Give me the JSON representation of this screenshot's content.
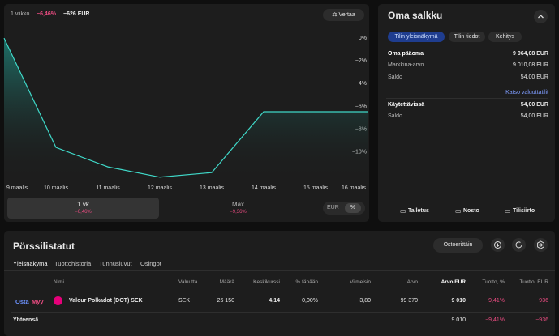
{
  "header": {
    "period": "1 viikko",
    "change_pct": "−6,46%",
    "change_eur": "−626 EUR",
    "compare": "Vertaa"
  },
  "chart": {
    "type": "line",
    "categories": [
      "9 maalis",
      "10 maalis",
      "11 maalis",
      "12 maalis",
      "13 maalis",
      "14 maalis",
      "15 maalis",
      "16 maalis"
    ],
    "values": [
      0,
      -9.6,
      -11.3,
      -12.2,
      -11.8,
      -6.46,
      -6.46,
      -6.46
    ],
    "color": "#3fd8c8",
    "ylim": [
      -12.5,
      1.5
    ],
    "yticks": [
      {
        "value": 0,
        "label": "0%"
      },
      {
        "value": -2,
        "label": "−2%"
      },
      {
        "value": -4,
        "label": "−4%"
      },
      {
        "value": -6,
        "label": "−6%"
      },
      {
        "value": -8,
        "label": "−8%"
      },
      {
        "value": -10,
        "label": "−10%"
      }
    ]
  },
  "ranges": [
    {
      "label": "1 vk",
      "change": "−6,46%"
    },
    {
      "label": "Max",
      "change": "−9,36%"
    }
  ],
  "unit_toggle": [
    "EUR",
    "%"
  ],
  "portfolio": {
    "title": "Oma salkku",
    "tabs": [
      "Tilin yleisnäkymä",
      "Tilin tiedot",
      "Kehitys"
    ],
    "rows": [
      [
        "Oma pääoma",
        "9 064,08 EUR"
      ],
      [
        "Markkina-arvo",
        "9 010,08 EUR"
      ],
      [
        "Saldo",
        "54,00 EUR"
      ]
    ],
    "link": "Katso valuuttatilit",
    "rows2": [
      [
        "Käytettävissä",
        "54,00 EUR"
      ],
      [
        "Saldo",
        "54,00 EUR"
      ]
    ],
    "actions": [
      "Talletus",
      "Nosto",
      "Tilisiirto"
    ]
  },
  "holdings": {
    "title": "Pörssilistatut",
    "order_button": "Ostoerittäin",
    "tabs": [
      "Yleisnäkymä",
      "Tuottohistoria",
      "Tunnusluvut",
      "Osingot"
    ],
    "columns": [
      "Nimi",
      "Valuutta",
      "Määrä",
      "Keskikurssi",
      "% tänään",
      "Viimeisin",
      "Arvo",
      "Arvo EUR",
      "Tuotto, %",
      "Tuotto, EUR"
    ],
    "rows": [
      {
        "buy": "Osta",
        "sell": "Myy",
        "cells": [
          "Valour Polkadot (DOT) SEK",
          "SEK",
          "26 150",
          "4,14",
          "0,00%",
          "3,80",
          "99 370",
          "9 010",
          "−9,41%",
          "−936"
        ]
      }
    ],
    "total": {
      "label": "Yhteensä",
      "value_eur": "9 010",
      "return_pct": "−9,41%",
      "return_eur": "−936"
    }
  }
}
